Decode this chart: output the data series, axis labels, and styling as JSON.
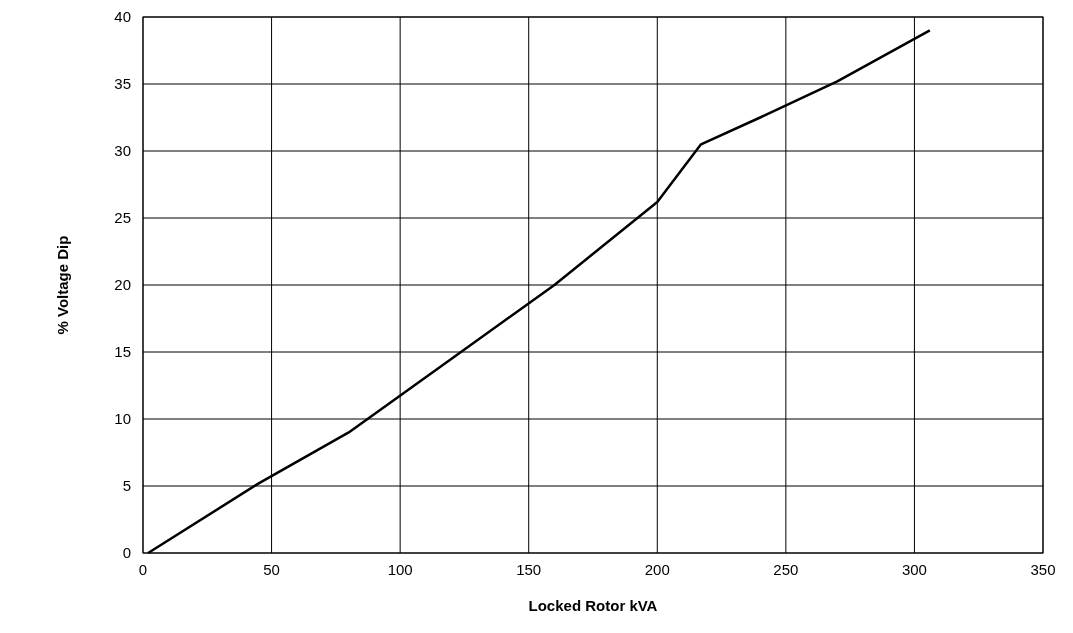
{
  "chart_data": {
    "type": "line",
    "xlabel": "Locked Rotor kVA",
    "ylabel": "% Voltage Dip",
    "x": [
      2,
      45,
      80,
      120,
      160,
      200,
      217,
      240,
      270,
      306
    ],
    "series": [
      {
        "color": "#000000",
        "values": [
          0,
          5.2,
          9,
          14.5,
          20,
          26.2,
          30.5,
          32.5,
          35.2,
          39
        ]
      }
    ],
    "xlim": [
      0,
      350
    ],
    "xticks": [
      0,
      50,
      100,
      150,
      200,
      250,
      300,
      350
    ],
    "ylim": [
      0,
      40
    ],
    "yticks": [
      0,
      5,
      10,
      15,
      20,
      25,
      30,
      35,
      40
    ],
    "grid": true,
    "marker": "none",
    "line_style": "solid"
  }
}
